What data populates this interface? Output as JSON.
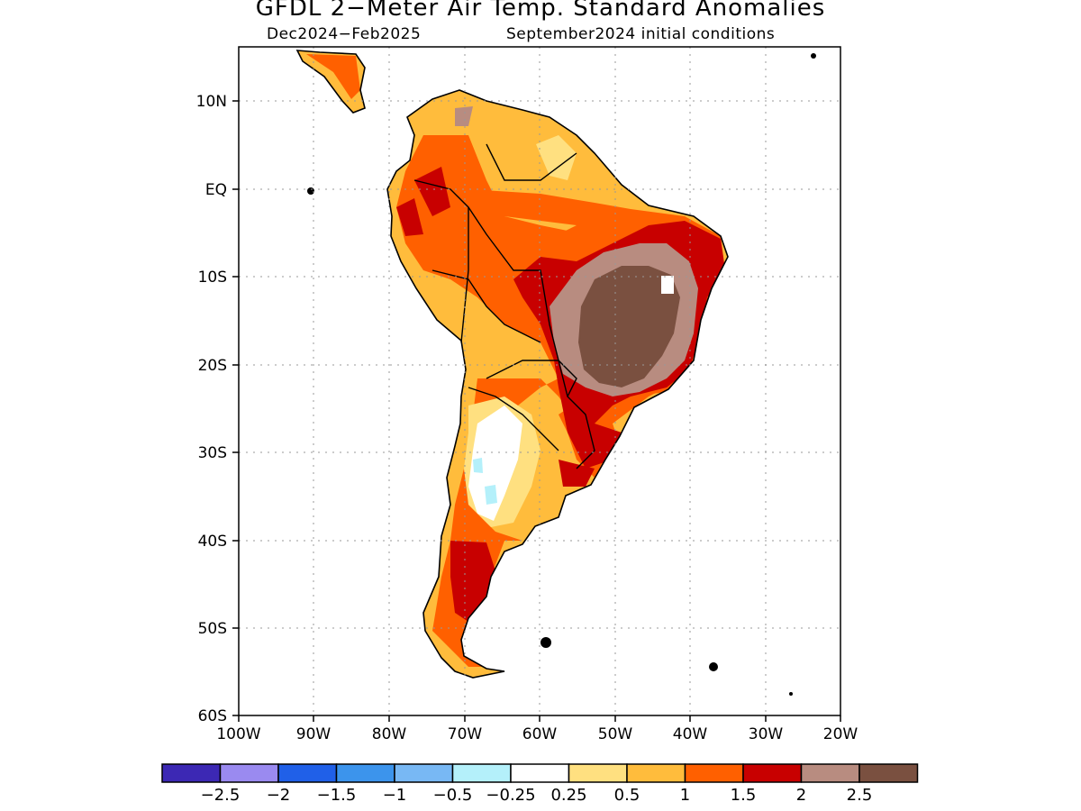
{
  "header": {
    "title": "GFDL 2−Meter Air Temp. Standard Anomalies",
    "period": "Dec2024−Feb2025",
    "init": "September2024 initial conditions"
  },
  "axes": {
    "lat_ticks": [
      "10N",
      "EQ",
      "10S",
      "20S",
      "30S",
      "40S",
      "50S",
      "60S"
    ],
    "lon_ticks": [
      "100W",
      "90W",
      "80W",
      "70W",
      "60W",
      "50W",
      "40W",
      "30W",
      "20W"
    ]
  },
  "legend": {
    "colors": [
      "#3c28b4",
      "#9a8af0",
      "#2060e8",
      "#3c94ec",
      "#78b8f4",
      "#b4f0fa",
      "#ffffff",
      "#ffe080",
      "#ffbc3c",
      "#ff6000",
      "#c80000",
      "#b88c80",
      "#7a5040"
    ],
    "labels": [
      "−2.5",
      "−2",
      "−1.5",
      "−1",
      "−0.5",
      "−0.25",
      "0.25",
      "0.5",
      "1",
      "1.5",
      "2",
      "2.5"
    ]
  },
  "map_data": {
    "lon_range": [
      -100,
      -20
    ],
    "lat_range": [
      -60,
      16
    ],
    "anomaly_regions": [
      {
        "level": "0.5 to 1",
        "color": "#ffbc3c",
        "area": "southern South America land"
      },
      {
        "level": "1 to 1.5",
        "color": "#ff6000",
        "area": "Amazon, Andes, Patagonia"
      },
      {
        "level": "1.5 to 2",
        "color": "#c80000",
        "area": "eastern Brazil, southern Brazil, Patagonia"
      },
      {
        "level": "2 to 2.5",
        "color": "#b88c80",
        "area": "central-east Brazil"
      },
      {
        "level": "> 2.5",
        "color": "#7a5040",
        "area": "central Brazil core"
      },
      {
        "level": "0.25 to 0.5",
        "color": "#ffe080",
        "area": "central Argentina, coastal fringes"
      },
      {
        "level": "-0.25 to 0.25",
        "color": "#ffffff",
        "area": "central Argentina"
      },
      {
        "level": "-0.5 to -0.25",
        "color": "#b4f0fa",
        "area": "small patches west-central Argentina"
      }
    ]
  }
}
